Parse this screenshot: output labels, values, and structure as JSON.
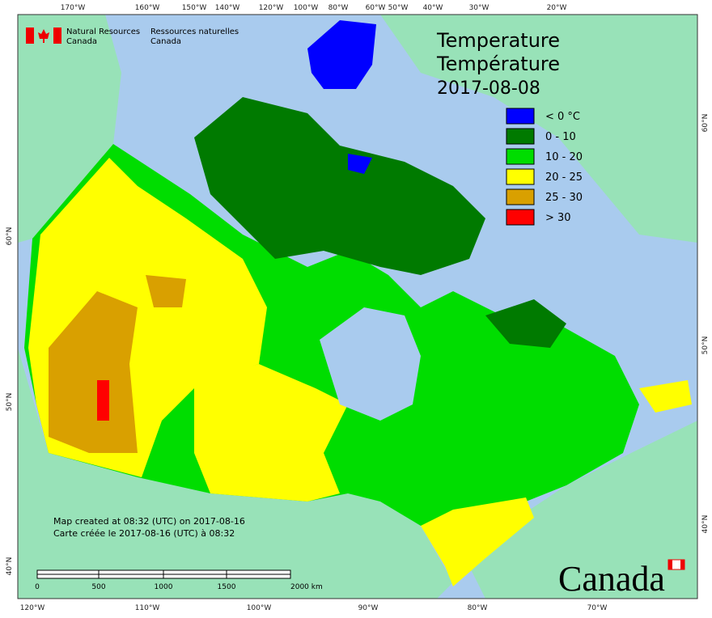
{
  "header": {
    "org_en": "Natural Resources",
    "org_en_2": "Canada",
    "org_fr": "Ressources naturelles",
    "org_fr_2": "Canada"
  },
  "title": {
    "en": "Temperature",
    "fr": "Température",
    "date": "2017-08-08"
  },
  "legend": [
    {
      "label": "< 0 °C",
      "color": "#0000ff"
    },
    {
      "label": "0 - 10",
      "color": "#007a00"
    },
    {
      "label": "10 - 20",
      "color": "#00dd00"
    },
    {
      "label": "20 - 25",
      "color": "#ffff00"
    },
    {
      "label": "25 - 30",
      "color": "#d9a000"
    },
    {
      "label": "> 30",
      "color": "#ff0000"
    }
  ],
  "graticule": {
    "top": [
      "170°W",
      "160°W",
      "150°W",
      "140°W",
      "120°W",
      "100°W",
      "80°W",
      "60°W",
      "50°W",
      "40°W",
      "30°W",
      "20°W"
    ],
    "bottom": [
      "120°W",
      "110°W",
      "100°W",
      "90°W",
      "80°W",
      "70°W"
    ],
    "left": [
      "60°N",
      "50°N",
      "40°N"
    ],
    "right": [
      "60°N",
      "50°N",
      "40°N"
    ]
  },
  "footer": {
    "line_1": "Map created at 08:32 (UTC) on 2017-08-16",
    "line_2": "Carte créée le 2017-08-16 (UTC) à 08:32"
  },
  "scale_bar": [
    "0",
    "500",
    "1000",
    "1500",
    "2000 km"
  ],
  "wordmark": "Canada"
}
